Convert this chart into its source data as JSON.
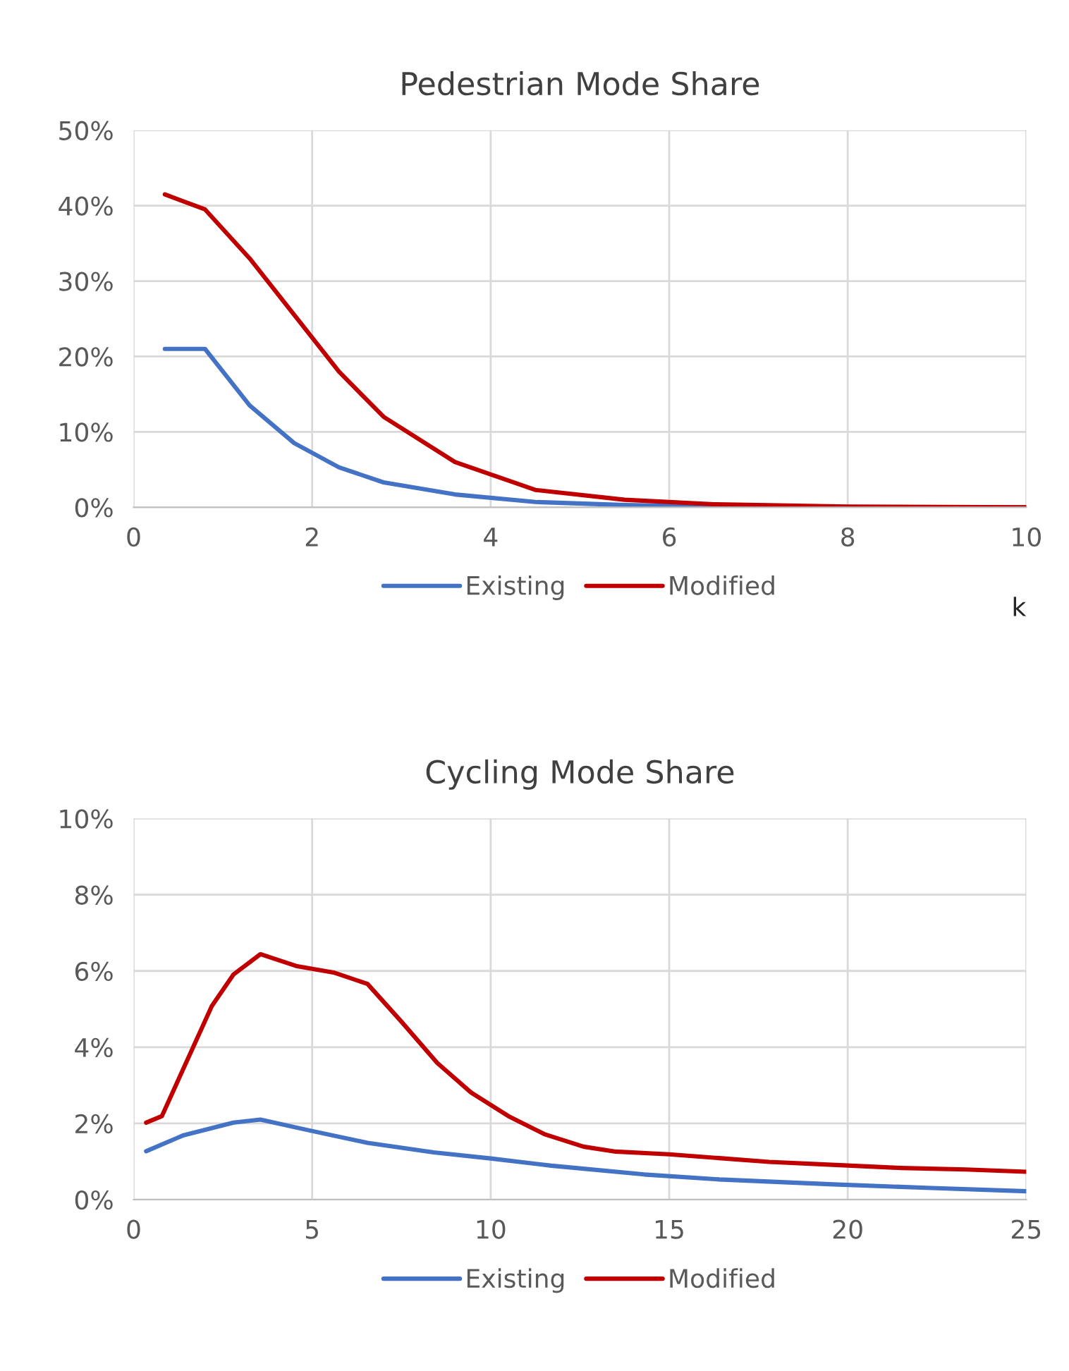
{
  "chart_data": [
    {
      "type": "line",
      "title": "Pedestrian Mode Share",
      "legend": "bottom",
      "grid": true,
      "annotations": [
        "k"
      ],
      "xlim": [
        0,
        10
      ],
      "xticks": [
        0,
        2,
        4,
        6,
        8,
        10
      ],
      "ylim": [
        0,
        50
      ],
      "yticks": [
        {
          "value": 0,
          "label": "0%"
        },
        {
          "value": 10,
          "label": "10%"
        },
        {
          "value": 20,
          "label": "20%"
        },
        {
          "value": 30,
          "label": "30%"
        },
        {
          "value": 40,
          "label": "40%"
        },
        {
          "value": 50,
          "label": "50%"
        }
      ],
      "series": [
        {
          "name": "Existing",
          "color": "#4472c4",
          "x": [
            0.35,
            0.8,
            1.3,
            1.8,
            2.3,
            2.8,
            3.6,
            4.5,
            5.5,
            6.5,
            8,
            10
          ],
          "values": [
            21,
            21,
            13.5,
            8.5,
            5.3,
            3.3,
            1.7,
            0.7,
            0.3,
            0.1,
            0,
            0
          ]
        },
        {
          "name": "Modified",
          "color": "#c00000",
          "x": [
            0.35,
            0.8,
            1.3,
            1.8,
            2.3,
            2.8,
            3.6,
            4.5,
            5.5,
            6.5,
            8,
            10
          ],
          "values": [
            41.5,
            39.5,
            33,
            25.5,
            18,
            12,
            6,
            2.3,
            1,
            0.4,
            0.1,
            0
          ]
        }
      ]
    },
    {
      "type": "line",
      "title": "Cycling Mode Share",
      "legend": "bottom",
      "grid": true,
      "xlim": [
        0,
        25
      ],
      "xticks": [
        0,
        5,
        10,
        15,
        20,
        25
      ],
      "ylim": [
        0,
        10
      ],
      "yticks": [
        {
          "value": 0,
          "label": "0%"
        },
        {
          "value": 2,
          "label": "2%"
        },
        {
          "value": 4,
          "label": "4%"
        },
        {
          "value": 6,
          "label": "6%"
        },
        {
          "value": 8,
          "label": "8%"
        },
        {
          "value": 10,
          "label": "10%"
        }
      ],
      "series": [
        {
          "name": "Existing",
          "color": "#4472c4",
          "x": [
            0.35,
            1.4,
            2.8,
            3.55,
            4.9,
            6.55,
            8.4,
            10,
            11.7,
            14.3,
            16.4,
            19.6,
            22.2,
            25
          ],
          "values": [
            1.27,
            1.69,
            2.02,
            2.1,
            1.82,
            1.49,
            1.24,
            1.08,
            0.89,
            0.66,
            0.53,
            0.4,
            0.31,
            0.22
          ]
        },
        {
          "name": "Modified",
          "color": "#c00000",
          "x": [
            0.35,
            0.79,
            2.19,
            2.8,
            3.55,
            4.55,
            5.6,
            6.55,
            7.5,
            8.5,
            9.45,
            10.5,
            11.5,
            12.6,
            13.5,
            15,
            16.4,
            17.8,
            20.1,
            21.5,
            23.3,
            25
          ],
          "values": [
            2.02,
            2.19,
            5.08,
            5.91,
            6.44,
            6.13,
            5.96,
            5.66,
            4.67,
            3.59,
            2.81,
            2.19,
            1.72,
            1.39,
            1.26,
            1.19,
            1.09,
            0.99,
            0.89,
            0.83,
            0.79,
            0.73
          ]
        }
      ]
    }
  ]
}
